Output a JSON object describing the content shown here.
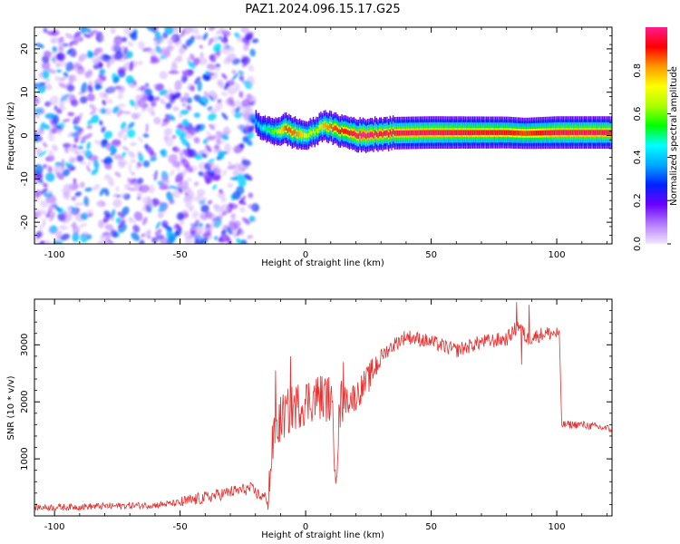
{
  "title": "PAZ1.2024.096.15.17.G25",
  "colors": {
    "snr_line": "#e8302f",
    "colorbar_stops": [
      "#f2e6ff",
      "#b47cff",
      "#6a00ff",
      "#0022ff",
      "#00a8ff",
      "#00ffff",
      "#00ff00",
      "#aaff00",
      "#ffff00",
      "#ff9900",
      "#ff0000",
      "#ff1a8c"
    ]
  },
  "chart_data": [
    {
      "type": "heatmap",
      "name": "spectrogram",
      "xlabel": "Height of straight line (km)",
      "ylabel": "Frequency (Hz)",
      "xlim": [
        -108,
        122
      ],
      "ylim": [
        -25,
        25
      ],
      "xticks": [
        -100,
        -50,
        0,
        50,
        100
      ],
      "yticks": [
        -20,
        -10,
        0,
        10,
        20
      ],
      "noise_region_x": [
        -108,
        -20
      ],
      "signal": {
        "points": [
          {
            "x": -20,
            "f": 3.0,
            "amp": 0.25
          },
          {
            "x": -17,
            "f": 1.5,
            "amp": 0.35
          },
          {
            "x": -12,
            "f": 1.0,
            "amp": 0.55
          },
          {
            "x": -8,
            "f": 1.5,
            "amp": 0.85
          },
          {
            "x": -4,
            "f": 0.5,
            "amp": 0.8
          },
          {
            "x": 0,
            "f": 0.0,
            "amp": 0.65
          },
          {
            "x": 4,
            "f": 1.0,
            "amp": 0.6
          },
          {
            "x": 7,
            "f": 2.5,
            "amp": 0.75
          },
          {
            "x": 11,
            "f": 1.5,
            "amp": 0.85
          },
          {
            "x": 16,
            "f": 0.8,
            "amp": 0.9
          },
          {
            "x": 22,
            "f": 0.0,
            "amp": 1.0
          },
          {
            "x": 30,
            "f": 0.5,
            "amp": 0.95
          },
          {
            "x": 50,
            "f": 0.7,
            "amp": 0.95
          },
          {
            "x": 80,
            "f": 0.7,
            "amp": 0.9
          },
          {
            "x": 87,
            "f": 0.5,
            "amp": 0.85
          },
          {
            "x": 100,
            "f": 0.7,
            "amp": 0.95
          },
          {
            "x": 122,
            "f": 0.7,
            "amp": 0.95
          }
        ]
      },
      "colorbar": {
        "label": "Normalized spectral amplitude",
        "range": [
          0,
          1
        ],
        "ticks": [
          0.0,
          0.2,
          0.4,
          0.6,
          0.8
        ]
      }
    },
    {
      "type": "line",
      "name": "snr",
      "xlabel": "Height of straight line (km)",
      "ylabel": "SNR (10 * v/v)",
      "xlim": [
        -108,
        122
      ],
      "ylim": [
        0,
        3800
      ],
      "xticks": [
        -100,
        -50,
        0,
        50,
        100
      ],
      "yticks": [
        1000,
        2000,
        3000
      ],
      "trend": [
        {
          "x": -108,
          "y": 150
        },
        {
          "x": -100,
          "y": 150
        },
        {
          "x": -80,
          "y": 170
        },
        {
          "x": -60,
          "y": 190
        },
        {
          "x": -50,
          "y": 230
        },
        {
          "x": -40,
          "y": 320
        },
        {
          "x": -30,
          "y": 420
        },
        {
          "x": -22,
          "y": 480
        },
        {
          "x": -18,
          "y": 350
        },
        {
          "x": -15,
          "y": 300
        },
        {
          "x": -13,
          "y": 1300
        },
        {
          "x": -10,
          "y": 1700
        },
        {
          "x": -5,
          "y": 1900
        },
        {
          "x": 0,
          "y": 2000
        },
        {
          "x": 5,
          "y": 2100
        },
        {
          "x": 10,
          "y": 2050
        },
        {
          "x": 12,
          "y": 900
        },
        {
          "x": 14,
          "y": 2000
        },
        {
          "x": 20,
          "y": 2100
        },
        {
          "x": 25,
          "y": 2400
        },
        {
          "x": 30,
          "y": 2800
        },
        {
          "x": 35,
          "y": 3000
        },
        {
          "x": 40,
          "y": 3150
        },
        {
          "x": 50,
          "y": 3050
        },
        {
          "x": 60,
          "y": 2900
        },
        {
          "x": 70,
          "y": 3050
        },
        {
          "x": 80,
          "y": 3100
        },
        {
          "x": 85,
          "y": 3350
        },
        {
          "x": 88,
          "y": 3100
        },
        {
          "x": 95,
          "y": 3200
        },
        {
          "x": 101,
          "y": 3200
        },
        {
          "x": 102,
          "y": 1600
        },
        {
          "x": 110,
          "y": 1600
        },
        {
          "x": 122,
          "y": 1520
        }
      ],
      "spikes": [
        {
          "x": -12,
          "y": 2550
        },
        {
          "x": -6,
          "y": 2800
        },
        {
          "x": 15,
          "y": 2700
        },
        {
          "x": 84,
          "y": 3750
        },
        {
          "x": 86,
          "y": 2650
        },
        {
          "x": 89,
          "y": 3700
        },
        {
          "x": 12.5,
          "y": 700
        }
      ]
    }
  ]
}
